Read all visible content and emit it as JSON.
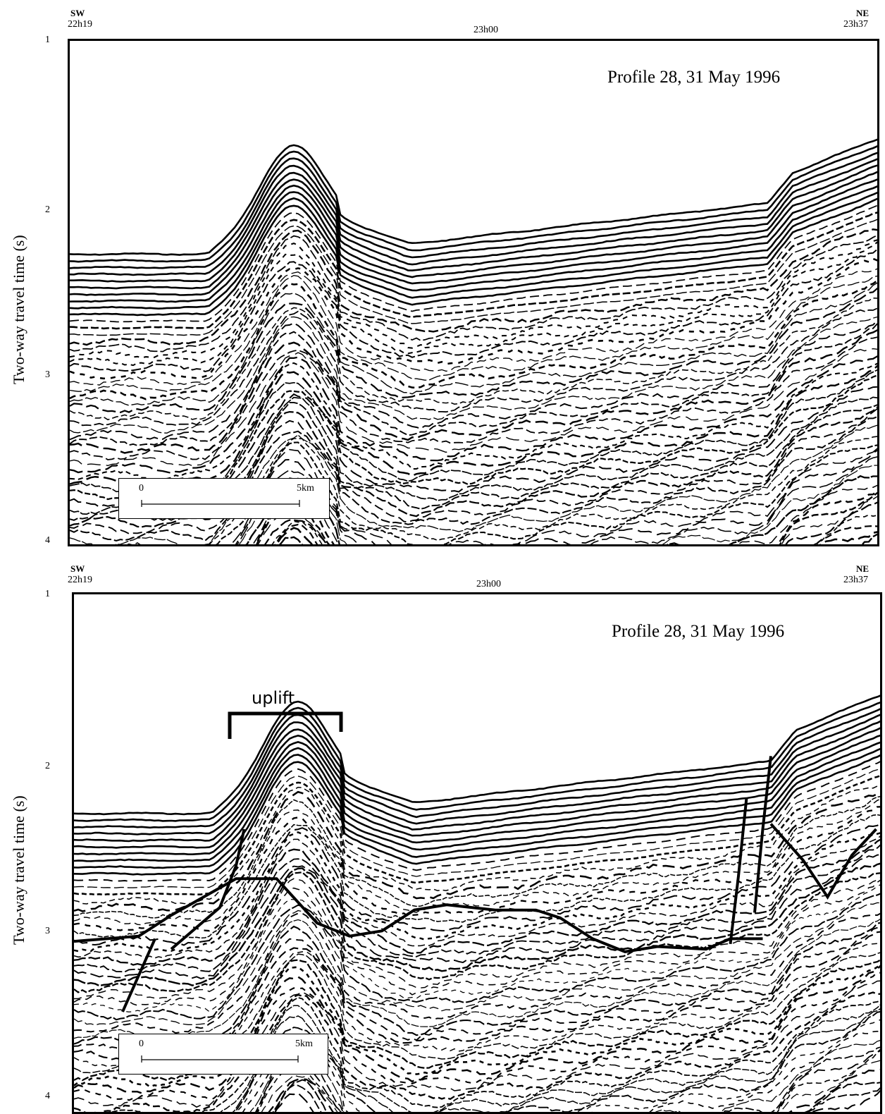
{
  "figure": {
    "panels": [
      {
        "id": "uninterpreted",
        "dir_left": "SW",
        "dir_right": "NE",
        "time_left": "22h19",
        "time_mid": "23h00",
        "time_right": "23h37",
        "profile_label": "Profile 28, 31 May 1996",
        "y_axis_label": "Two-way travel time (s)",
        "y_ticks": [
          "1",
          "2",
          "3",
          "4"
        ],
        "scale_bar": {
          "start": "0",
          "end": "5km"
        }
      },
      {
        "id": "interpreted",
        "dir_left": "SW",
        "dir_right": "NE",
        "time_left": "22h19",
        "time_mid": "23h00",
        "time_right": "23h37",
        "profile_label": "Profile 28, 31 May 1996",
        "y_axis_label": "Two-way travel time (s)",
        "y_ticks": [
          "1",
          "2",
          "3",
          "4"
        ],
        "scale_bar": {
          "start": "0",
          "end": "5km"
        },
        "annotation": "uplift"
      }
    ],
    "colors": {
      "ink": "#000000",
      "paper": "#ffffff"
    }
  }
}
